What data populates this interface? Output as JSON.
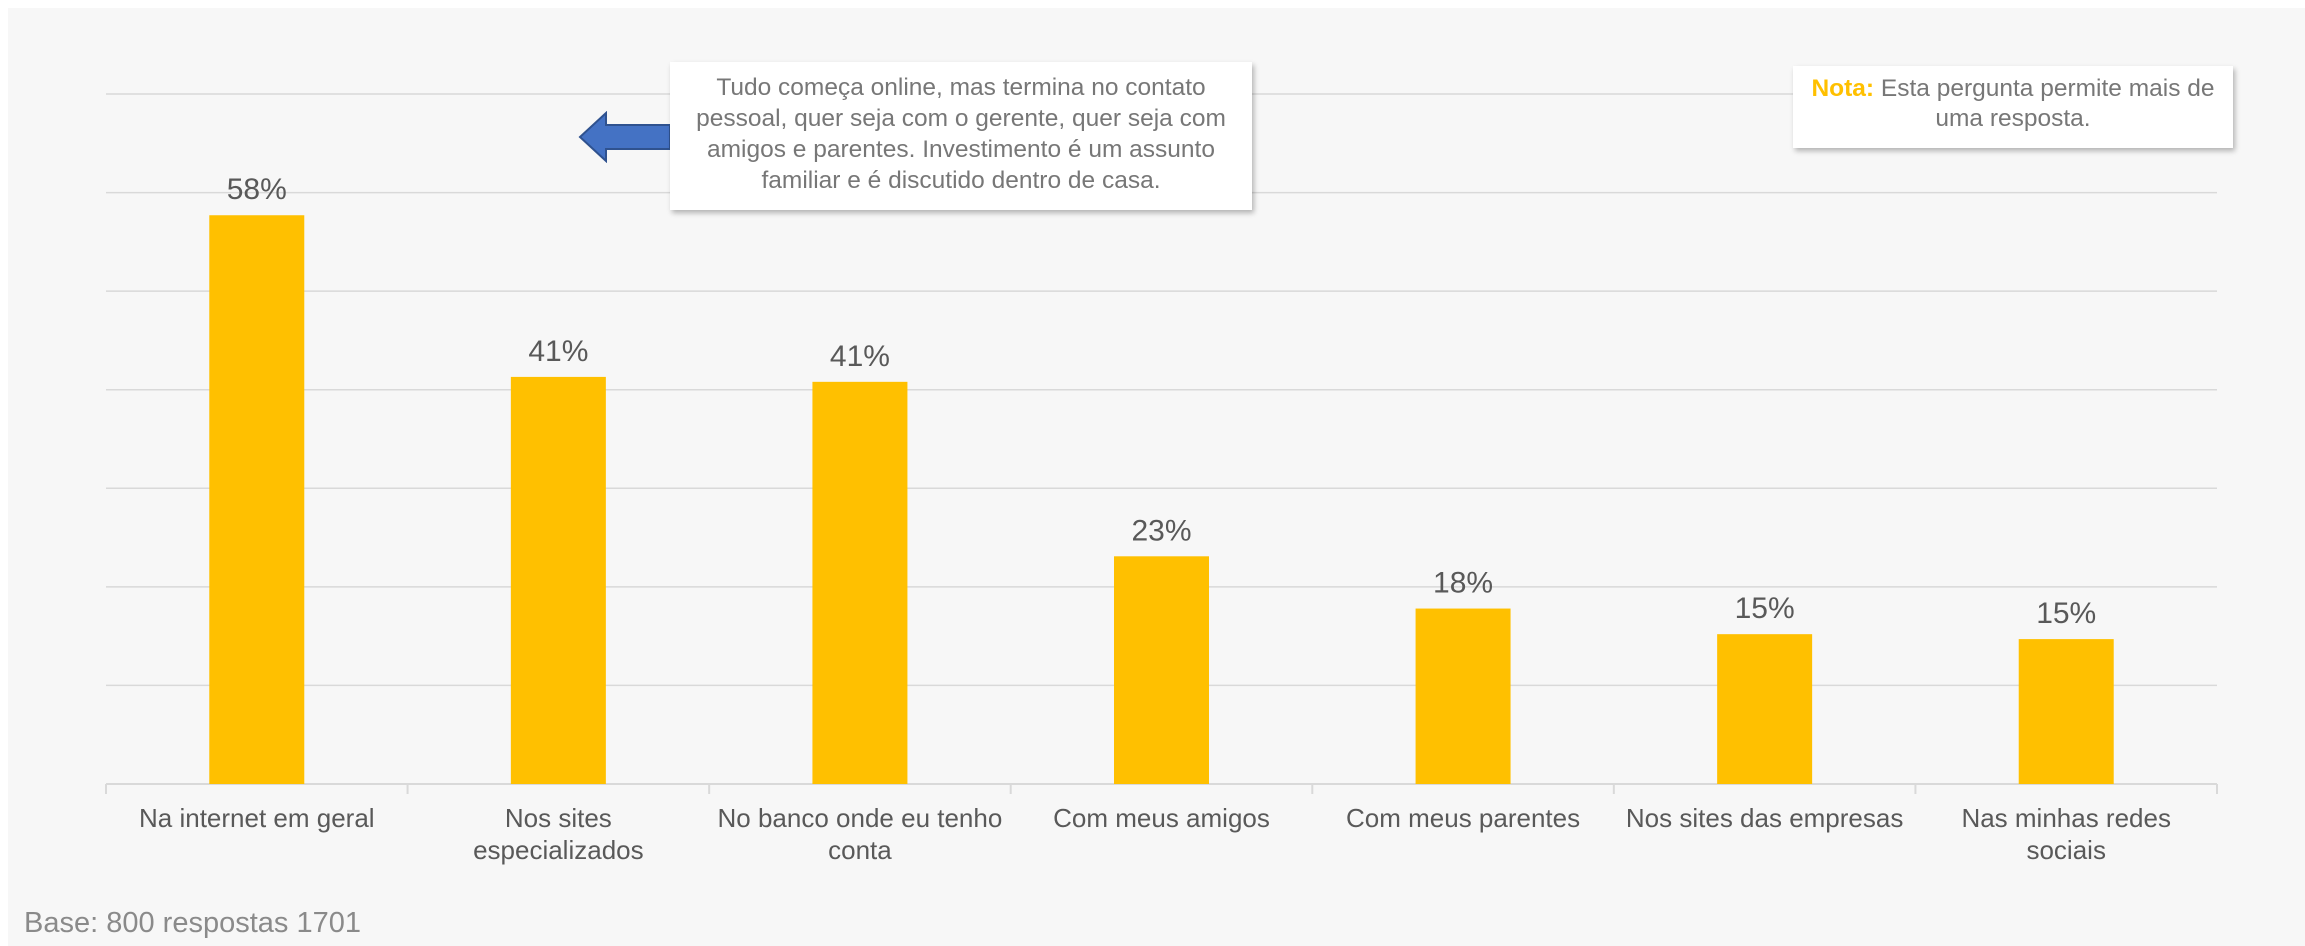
{
  "chart_data": {
    "type": "bar",
    "categories": [
      "Na internet em geral",
      "Nos sites especializados",
      "No banco onde eu tenho conta",
      "Com meus amigos",
      "Com meus parentes",
      "Nos sites das empresas",
      "Nas minhas redes sociais"
    ],
    "values": [
      58,
      41,
      41,
      23,
      18,
      15,
      15
    ],
    "data_labels": [
      "58%",
      "41%",
      "41%",
      "23%",
      "18%",
      "15%",
      "15%"
    ],
    "bar_heights_pct": [
      57.7,
      41.3,
      40.8,
      23.1,
      17.8,
      15.2,
      14.7
    ],
    "ylim": [
      0,
      70
    ],
    "grid": true,
    "legend": "none",
    "colors": {
      "bar": "#ffc000",
      "grid": "#d9d9d9",
      "text": "#595959",
      "background": "#f7f7f7"
    }
  },
  "callout": {
    "text": "Tudo começa online, mas termina no contato pessoal, quer seja com o gerente, quer seja com amigos e parentes. Investimento é um assunto familiar e é discutido dentro de casa.",
    "arrow_color": "#4472c4"
  },
  "note": {
    "label": "Nota:",
    "text": " Esta pergunta permite mais de uma resposta.",
    "label_color": "#ffc000"
  },
  "footer": {
    "base_text": "Base: 800 respostas 1701"
  }
}
